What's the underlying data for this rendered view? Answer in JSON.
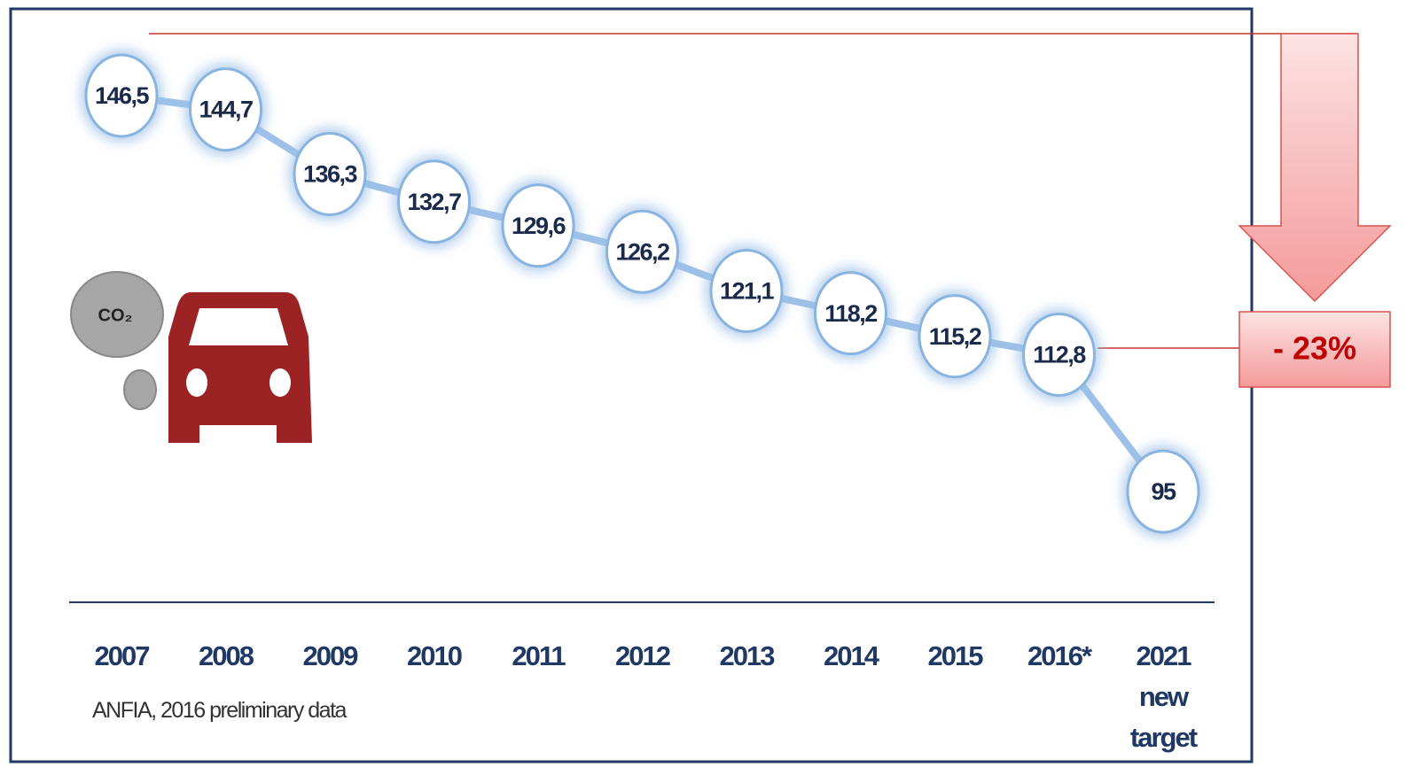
{
  "chart_data": {
    "type": "line",
    "categories": [
      "2007",
      "2008",
      "2009",
      "2010",
      "2011",
      "2012",
      "2013",
      "2014",
      "2015",
      "2016*",
      "2021 new target"
    ],
    "values": [
      146.5,
      144.7,
      136.3,
      132.7,
      129.6,
      126.2,
      121.1,
      118.2,
      115.2,
      112.8,
      95
    ],
    "value_labels": [
      "146,5",
      "144,7",
      "136,3",
      "132,7",
      "129,6",
      "126,2",
      "121,1",
      "118,2",
      "115,2",
      "112,8",
      "95"
    ],
    "color": "#9dc0e8",
    "annotation": "- 23%",
    "source": "ANFIA,  2016 preliminary data",
    "icon_label": "CO₂"
  }
}
